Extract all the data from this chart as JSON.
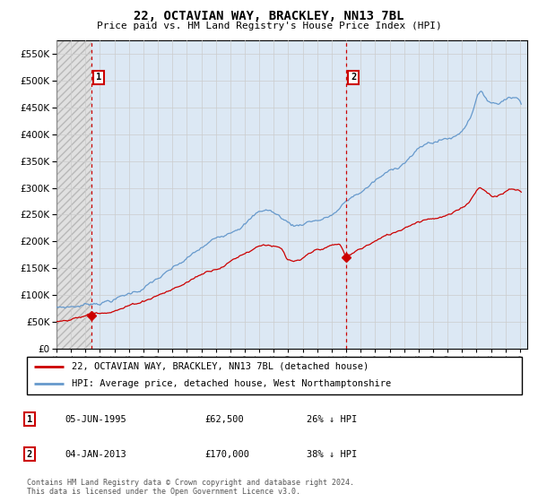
{
  "title": "22, OCTAVIAN WAY, BRACKLEY, NN13 7BL",
  "subtitle": "Price paid vs. HM Land Registry's House Price Index (HPI)",
  "xlim": [
    1993.0,
    2025.5
  ],
  "ylim": [
    0,
    575000
  ],
  "yticks": [
    0,
    50000,
    100000,
    150000,
    200000,
    250000,
    300000,
    350000,
    400000,
    450000,
    500000,
    550000
  ],
  "ytick_labels": [
    "£0",
    "£50K",
    "£100K",
    "£150K",
    "£200K",
    "£250K",
    "£300K",
    "£350K",
    "£400K",
    "£450K",
    "£500K",
    "£550K"
  ],
  "sale1_date": 1995.43,
  "sale1_price": 62500,
  "sale1_label": "1",
  "sale2_date": 2013.01,
  "sale2_price": 170000,
  "sale2_label": "2",
  "legend_line1": "22, OCTAVIAN WAY, BRACKLEY, NN13 7BL (detached house)",
  "legend_line2": "HPI: Average price, detached house, West Northamptonshire",
  "table_row1": [
    "1",
    "05-JUN-1995",
    "£62,500",
    "26% ↓ HPI"
  ],
  "table_row2": [
    "2",
    "04-JAN-2013",
    "£170,000",
    "38% ↓ HPI"
  ],
  "footer": "Contains HM Land Registry data © Crown copyright and database right 2024.\nThis data is licensed under the Open Government Licence v3.0.",
  "line_color_red": "#cc0000",
  "line_color_blue": "#6699cc",
  "grid_color": "#cccccc",
  "bg_color_hatch": "#e0e0e0",
  "bg_color_blue": "#dce8f4",
  "marker_color": "#cc0000",
  "box_color": "#cc0000"
}
